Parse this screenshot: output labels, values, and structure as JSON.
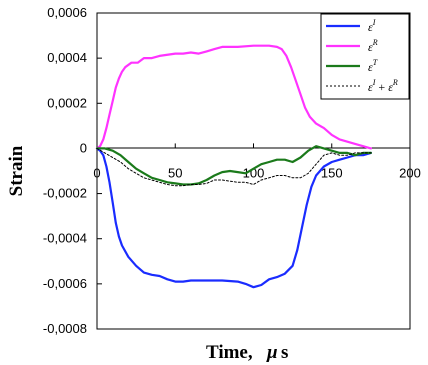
{
  "chart_data": {
    "type": "line",
    "xlabel_text": "Time,",
    "xlabel_unit_mu": "μ",
    "xlabel_unit_s": "s",
    "ylabel": "Strain",
    "xlim": [
      0,
      200
    ],
    "ylim": [
      -0.0008,
      0.0006
    ],
    "x_ticks": [
      0,
      50,
      100,
      150,
      200
    ],
    "x_tick_labels": [
      "0",
      "50",
      "100",
      "150",
      "200"
    ],
    "y_ticks": [
      0.0006,
      0.0004,
      0.0002,
      0,
      -0.0002,
      -0.0004,
      -0.0006,
      -0.0008
    ],
    "y_tick_labels": [
      "0,0006",
      "0,0004",
      "0,0002",
      "0",
      "-0,0002",
      "-0,0004",
      "-0,0006",
      "-0,0008"
    ],
    "grid": false,
    "legend_position": "top-right",
    "legend": [
      {
        "symbol": "ε",
        "sup": "I",
        "plus": "",
        "symbol2": "",
        "sup2": ""
      },
      {
        "symbol": "ε",
        "sup": "R",
        "plus": "",
        "symbol2": "",
        "sup2": ""
      },
      {
        "symbol": "ε",
        "sup": "T",
        "plus": "",
        "symbol2": "",
        "sup2": ""
      },
      {
        "symbol": "ε",
        "sup": "I",
        "plus": "+",
        "symbol2": "ε",
        "sup2": "R"
      }
    ],
    "series": [
      {
        "color": "#1a2cff",
        "style": "solid",
        "points": [
          [
            0,
            0
          ],
          [
            2,
            -1e-05
          ],
          [
            4,
            -3e-05
          ],
          [
            6,
            -8e-05
          ],
          [
            8,
            -0.00015
          ],
          [
            10,
            -0.00024
          ],
          [
            12,
            -0.00033
          ],
          [
            14,
            -0.00039
          ],
          [
            16,
            -0.00043
          ],
          [
            20,
            -0.00048
          ],
          [
            25,
            -0.00052
          ],
          [
            30,
            -0.00055
          ],
          [
            35,
            -0.00056
          ],
          [
            40,
            -0.000565
          ],
          [
            45,
            -0.00058
          ],
          [
            50,
            -0.00059
          ],
          [
            55,
            -0.00059
          ],
          [
            60,
            -0.000585
          ],
          [
            70,
            -0.000585
          ],
          [
            80,
            -0.000585
          ],
          [
            90,
            -0.00059
          ],
          [
            95,
            -0.0006
          ],
          [
            100,
            -0.000615
          ],
          [
            105,
            -0.000605
          ],
          [
            110,
            -0.00058
          ],
          [
            115,
            -0.00057
          ],
          [
            120,
            -0.000555
          ],
          [
            125,
            -0.00052
          ],
          [
            128,
            -0.00045
          ],
          [
            131,
            -0.00035
          ],
          [
            134,
            -0.00025
          ],
          [
            137,
            -0.00017
          ],
          [
            140,
            -0.00012
          ],
          [
            145,
            -8e-05
          ],
          [
            150,
            -6e-05
          ],
          [
            155,
            -5e-05
          ],
          [
            160,
            -4e-05
          ],
          [
            165,
            -3e-05
          ],
          [
            170,
            -3e-05
          ],
          [
            175,
            -2e-05
          ]
        ]
      },
      {
        "color": "#ff33ff",
        "style": "solid",
        "points": [
          [
            0,
            0
          ],
          [
            2,
            1e-05
          ],
          [
            4,
            4e-05
          ],
          [
            6,
            9e-05
          ],
          [
            8,
            0.00015
          ],
          [
            10,
            0.00021
          ],
          [
            12,
            0.00027
          ],
          [
            14,
            0.00031
          ],
          [
            16,
            0.00034
          ],
          [
            18,
            0.00036
          ],
          [
            22,
            0.00038
          ],
          [
            26,
            0.00038
          ],
          [
            30,
            0.0004
          ],
          [
            35,
            0.0004
          ],
          [
            40,
            0.00041
          ],
          [
            50,
            0.00042
          ],
          [
            55,
            0.00042
          ],
          [
            60,
            0.000425
          ],
          [
            65,
            0.00042
          ],
          [
            70,
            0.00043
          ],
          [
            75,
            0.00044
          ],
          [
            80,
            0.00045
          ],
          [
            90,
            0.00045
          ],
          [
            100,
            0.000455
          ],
          [
            110,
            0.000455
          ],
          [
            115,
            0.00045
          ],
          [
            118,
            0.00044
          ],
          [
            121,
            0.00041
          ],
          [
            124,
            0.00036
          ],
          [
            127,
            0.0003
          ],
          [
            130,
            0.00024
          ],
          [
            133,
            0.00018
          ],
          [
            136,
            0.00014
          ],
          [
            140,
            0.00011
          ],
          [
            145,
            9e-05
          ],
          [
            150,
            6e-05
          ],
          [
            155,
            4e-05
          ],
          [
            160,
            3e-05
          ],
          [
            165,
            2e-05
          ],
          [
            170,
            1e-05
          ],
          [
            175,
            0
          ]
        ]
      },
      {
        "color": "#1b7a1b",
        "style": "solid",
        "points": [
          [
            0,
            0
          ],
          [
            5,
            0
          ],
          [
            10,
            -1e-05
          ],
          [
            15,
            -3e-05
          ],
          [
            20,
            -6e-05
          ],
          [
            25,
            -9e-05
          ],
          [
            30,
            -0.00011
          ],
          [
            35,
            -0.00013
          ],
          [
            40,
            -0.00014
          ],
          [
            45,
            -0.00015
          ],
          [
            50,
            -0.000155
          ],
          [
            55,
            -0.00016
          ],
          [
            60,
            -0.00016
          ],
          [
            65,
            -0.000155
          ],
          [
            70,
            -0.00014
          ],
          [
            75,
            -0.00012
          ],
          [
            80,
            -0.000105
          ],
          [
            85,
            -0.0001
          ],
          [
            90,
            -0.000105
          ],
          [
            95,
            -0.00011
          ],
          [
            100,
            -9e-05
          ],
          [
            105,
            -7e-05
          ],
          [
            110,
            -6e-05
          ],
          [
            115,
            -5e-05
          ],
          [
            120,
            -5e-05
          ],
          [
            125,
            -6e-05
          ],
          [
            130,
            -4e-05
          ],
          [
            135,
            -1e-05
          ],
          [
            140,
            1e-05
          ],
          [
            145,
            0
          ],
          [
            150,
            -1e-05
          ],
          [
            155,
            -2e-05
          ],
          [
            160,
            -2e-05
          ],
          [
            165,
            -3e-05
          ],
          [
            170,
            -2e-05
          ],
          [
            175,
            -2e-05
          ]
        ]
      },
      {
        "color": "#000000",
        "style": "dotted",
        "points": [
          [
            0,
            0
          ],
          [
            5,
            -2e-05
          ],
          [
            10,
            -4e-05
          ],
          [
            15,
            -6e-05
          ],
          [
            20,
            -9e-05
          ],
          [
            25,
            -0.00011
          ],
          [
            30,
            -0.00013
          ],
          [
            35,
            -0.00014
          ],
          [
            40,
            -0.00015
          ],
          [
            45,
            -0.00016
          ],
          [
            50,
            -0.000165
          ],
          [
            55,
            -0.000165
          ],
          [
            60,
            -0.00016
          ],
          [
            65,
            -0.00016
          ],
          [
            70,
            -0.000155
          ],
          [
            75,
            -0.00014
          ],
          [
            80,
            -0.00014
          ],
          [
            85,
            -0.000145
          ],
          [
            90,
            -0.00015
          ],
          [
            95,
            -0.00015
          ],
          [
            100,
            -0.00016
          ],
          [
            105,
            -0.00014
          ],
          [
            110,
            -0.00013
          ],
          [
            115,
            -0.00012
          ],
          [
            120,
            -0.00012
          ],
          [
            125,
            -0.00013
          ],
          [
            130,
            -0.00013
          ],
          [
            135,
            -0.00011
          ],
          [
            140,
            -7e-05
          ],
          [
            145,
            -3e-05
          ],
          [
            150,
            -2e-05
          ],
          [
            155,
            -3e-05
          ],
          [
            160,
            -3e-05
          ],
          [
            165,
            -2e-05
          ],
          [
            170,
            -2e-05
          ],
          [
            175,
            -2e-05
          ]
        ]
      }
    ]
  }
}
